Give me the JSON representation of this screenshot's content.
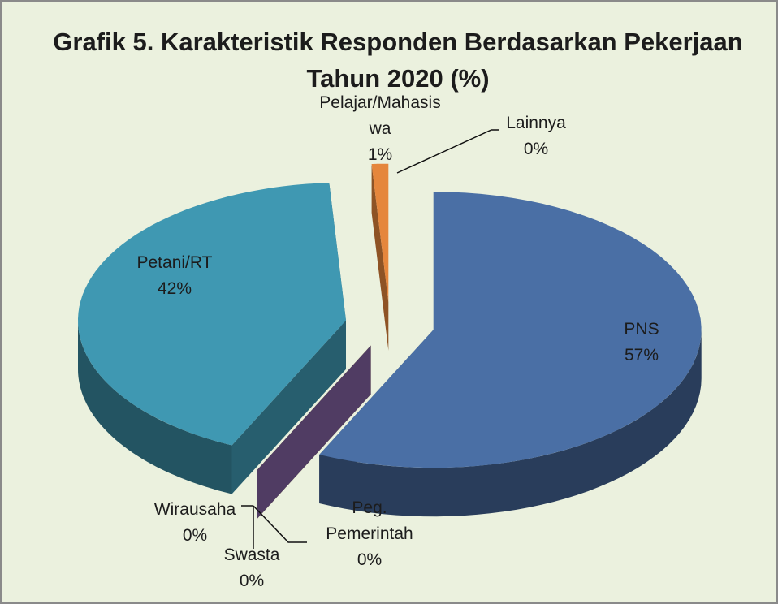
{
  "chart_data": {
    "type": "pie3d",
    "title": "Grafik 5. Karakteristik Responden Berdasarkan Pekerjaan Tahun 2020 (%)",
    "categories": [
      "PNS",
      "Peg. Pemerintah",
      "Swasta",
      "Wirausaha",
      "Petani/RT",
      "Pelajar/Mahasiswa",
      "Lainnya"
    ],
    "values": [
      57,
      0,
      0,
      0,
      42,
      1,
      0
    ],
    "value_labels": [
      "57%",
      "0%",
      "0%",
      "0%",
      "42%",
      "1%",
      "0%"
    ],
    "colors": [
      "#4a6fa5",
      "#a84a48",
      "#86a44c",
      "#5e4674",
      "#3f98b2",
      "#e5863c",
      "#8eaad8"
    ]
  }
}
